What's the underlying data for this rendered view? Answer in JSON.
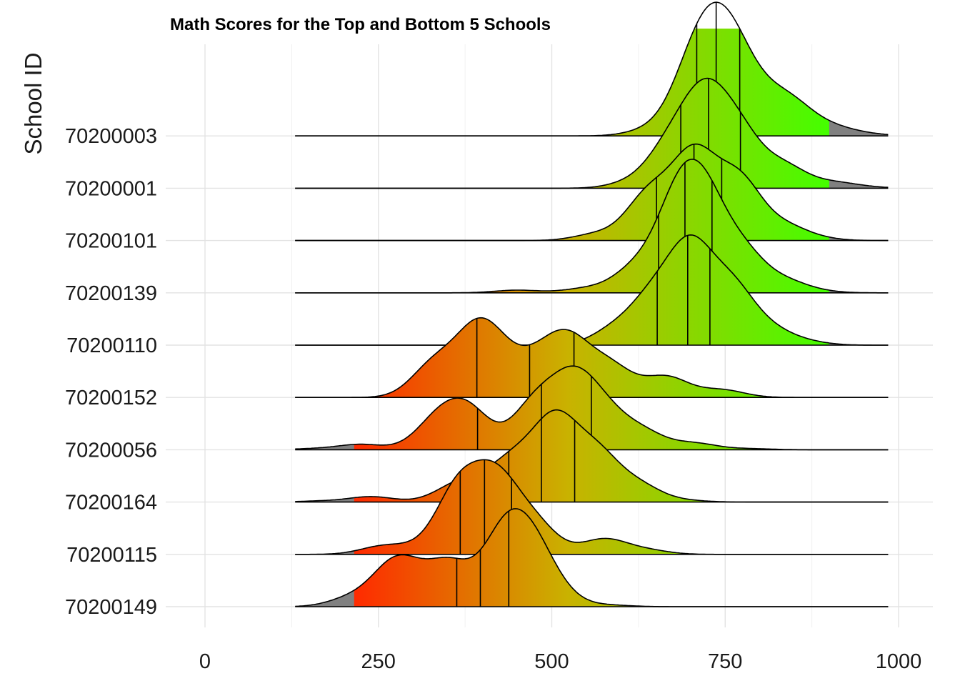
{
  "chart_data": {
    "type": "density_ridges",
    "title": "Math Scores for the Top and Bottom 5 Schools",
    "xlabel": "",
    "ylabel": "School ID",
    "xlim": [
      0,
      1000
    ],
    "xticks": [
      "0",
      "250",
      "500",
      "750",
      "1000"
    ],
    "xtick_values": [
      0,
      250,
      500,
      750,
      1000
    ],
    "grid": true,
    "legend": "none",
    "range": [
      130,
      985
    ],
    "color_scale": {
      "low": "#ff2a00",
      "mid": "#c9b200",
      "high": "#44ff00",
      "out_of_range": "#808080"
    },
    "series": [
      {
        "school_id": "70200149",
        "quartiles": [
          363,
          397,
          438
        ],
        "peaks": [
          [
            300,
            0.06
          ],
          [
            360,
            0.12
          ],
          [
            210,
            0.15
          ],
          [
            265,
            0.38
          ],
          [
            285,
            0.5
          ],
          [
            350,
            0.66
          ],
          [
            430,
            1.2
          ],
          [
            470,
            0.95
          ],
          [
            505,
            0.22
          ],
          [
            580,
            0.03
          ]
        ]
      },
      {
        "school_id": "70200115",
        "quartiles": [
          368,
          403,
          442
        ],
        "peaks": [
          [
            300,
            0.08
          ],
          [
            255,
            0.14
          ],
          [
            365,
            1.2
          ],
          [
            420,
            1.3
          ],
          [
            475,
            0.55
          ],
          [
            575,
            0.28
          ],
          [
            635,
            0.08
          ]
        ]
      },
      {
        "school_id": "70200164",
        "quartiles": [
          438,
          485,
          533
        ],
        "peaks": [
          [
            170,
            0.02
          ],
          [
            240,
            0.1
          ],
          [
            360,
            0.25
          ],
          [
            395,
            0.22
          ],
          [
            445,
            0.7
          ],
          [
            505,
            1.45
          ],
          [
            565,
            0.85
          ],
          [
            625,
            0.3
          ],
          [
            690,
            0.03
          ]
        ]
      },
      {
        "school_id": "70200056",
        "quartiles": [
          393,
          485,
          557
        ],
        "peaks": [
          [
            160,
            0.02
          ],
          [
            225,
            0.1
          ],
          [
            335,
            0.52
          ],
          [
            380,
            0.7
          ],
          [
            475,
            0.82
          ],
          [
            530,
            1.15
          ],
          [
            575,
            0.6
          ],
          [
            630,
            0.32
          ],
          [
            705,
            0.12
          ],
          [
            785,
            0.02
          ]
        ]
      },
      {
        "school_id": "70200152",
        "quartiles": [
          392,
          468,
          532
        ],
        "peaks": [
          [
            330,
            0.6
          ],
          [
            390,
            1.05
          ],
          [
            425,
            0.55
          ],
          [
            480,
            0.55
          ],
          [
            525,
            0.95
          ],
          [
            585,
            0.55
          ],
          [
            665,
            0.38
          ],
          [
            745,
            0.14
          ]
        ]
      },
      {
        "school_id": "70200110",
        "quartiles": [
          652,
          696,
          728
        ],
        "peaks": [
          [
            590,
            0.28
          ],
          [
            645,
            0.8
          ],
          [
            700,
            1.7
          ],
          [
            760,
            1.0
          ],
          [
            815,
            0.25
          ],
          [
            865,
            0.06
          ]
        ]
      },
      {
        "school_id": "70200139",
        "quartiles": [
          654,
          692,
          731
        ],
        "peaks": [
          [
            450,
            0.05
          ],
          [
            550,
            0.08
          ],
          [
            620,
            0.42
          ],
          [
            680,
            1.45
          ],
          [
            720,
            1.5
          ],
          [
            775,
            0.7
          ],
          [
            835,
            0.2
          ],
          [
            880,
            0.03
          ]
        ]
      },
      {
        "school_id": "70200101",
        "quartiles": [
          651,
          705,
          745
        ],
        "peaks": [
          [
            565,
            0.12
          ],
          [
            640,
            0.85
          ],
          [
            705,
            1.55
          ],
          [
            770,
            1.1
          ],
          [
            835,
            0.25
          ],
          [
            880,
            0.04
          ]
        ]
      },
      {
        "school_id": "70200001",
        "quartiles": [
          686,
          726,
          772
        ],
        "peaks": [
          [
            615,
            0.1
          ],
          [
            670,
            0.72
          ],
          [
            720,
            1.55
          ],
          [
            770,
            0.95
          ],
          [
            835,
            0.4
          ],
          [
            905,
            0.1
          ],
          [
            950,
            0.02
          ]
        ]
      },
      {
        "school_id": "70200003",
        "quartiles": [
          709,
          737,
          771
        ],
        "peaks": [
          [
            640,
            0.1
          ],
          [
            700,
            0.95
          ],
          [
            735,
            1.4
          ],
          [
            770,
            1.0
          ],
          [
            815,
            0.4
          ],
          [
            850,
            0.45
          ],
          [
            905,
            0.14
          ],
          [
            955,
            0.03
          ]
        ]
      }
    ]
  }
}
